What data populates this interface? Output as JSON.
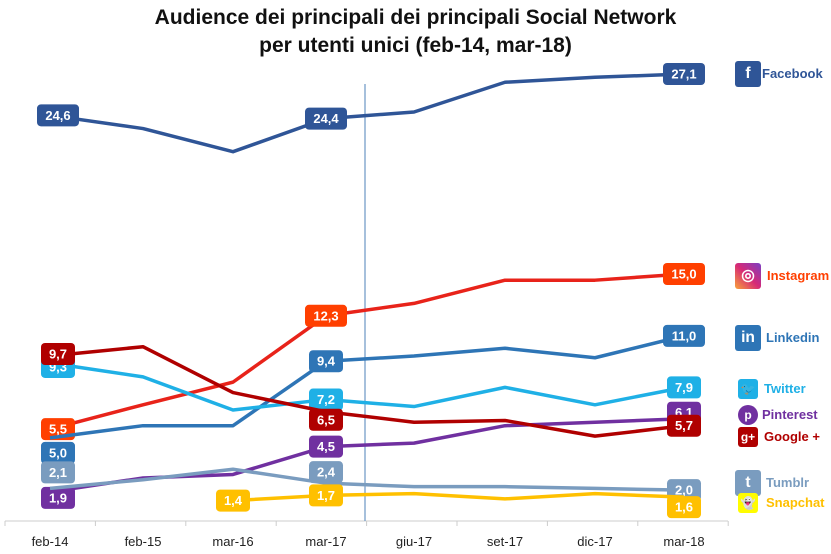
{
  "chart_data": {
    "type": "line",
    "title": "Audience dei principali dei principali Social Network",
    "subtitle": "per utenti unici (feb-14, mar-18)",
    "categories": [
      "feb-14",
      "feb-15",
      "mar-16",
      "mar-17",
      "giu-17",
      "set-17",
      "dic-17",
      "mar-18"
    ],
    "grid": false,
    "legend": "right",
    "series": [
      {
        "name": "Facebook",
        "icon": "facebook-icon",
        "color": "#2f5597",
        "label_color": "#2f5597",
        "values": [
          24.6,
          23.8,
          22.4,
          24.4,
          24.8,
          26.6,
          26.9,
          27.1
        ],
        "labels": [
          {
            "at": "feb-14",
            "text": "24,6"
          },
          {
            "at": "mar-17",
            "text": "24,4"
          },
          {
            "at": "mar-18",
            "text": "27,1"
          }
        ]
      },
      {
        "name": "Instagram",
        "icon": "instagram-icon",
        "color": "#e8231a",
        "label_color": "#ff3f00",
        "values": [
          5.5,
          6.9,
          8.2,
          12.3,
          13.1,
          14.6,
          14.6,
          15.0
        ],
        "labels": [
          {
            "at": "feb-14",
            "text": "5,5"
          },
          {
            "at": "mar-17",
            "text": "12,3"
          },
          {
            "at": "mar-18",
            "text": "15,0"
          }
        ]
      },
      {
        "name": "Linkedin",
        "icon": "linkedin-icon",
        "color": "#2e75b6",
        "label_color": "#2e75b6",
        "values": [
          5.0,
          5.7,
          5.7,
          9.4,
          9.7,
          10.2,
          9.6,
          11.0
        ],
        "labels": [
          {
            "at": "feb-14",
            "text": "5,0"
          },
          {
            "at": "mar-17",
            "text": "9,4"
          },
          {
            "at": "mar-18",
            "text": "11,0"
          }
        ]
      },
      {
        "name": "Twitter",
        "icon": "twitter-icon",
        "color": "#1fb0e6",
        "label_color": "#1fb0e6",
        "values": [
          9.3,
          8.5,
          6.6,
          7.2,
          6.8,
          7.9,
          6.9,
          7.9
        ],
        "labels": [
          {
            "at": "feb-14",
            "text": "9,3"
          },
          {
            "at": "mar-17",
            "text": "7,2"
          },
          {
            "at": "mar-18",
            "text": "7,9"
          }
        ]
      },
      {
        "name": "Pinterest",
        "icon": "pinterest-icon",
        "color": "#7030a0",
        "label_color": "#7030a0",
        "values": [
          1.9,
          2.7,
          2.9,
          4.5,
          4.7,
          5.7,
          5.9,
          6.1
        ],
        "labels": [
          {
            "at": "feb-14",
            "text": "1,9"
          },
          {
            "at": "mar-17",
            "text": "4,5"
          },
          {
            "at": "mar-18",
            "text": "6,1"
          }
        ]
      },
      {
        "name": "Google +",
        "icon": "google-plus-icon",
        "color": "#b00000",
        "label_color": "#b00000",
        "values": [
          9.7,
          10.3,
          7.6,
          6.5,
          5.9,
          6.0,
          5.1,
          5.7
        ],
        "labels": [
          {
            "at": "feb-14",
            "text": "9,7"
          },
          {
            "at": "mar-17",
            "text": "6,5"
          },
          {
            "at": "mar-18",
            "text": "5,7"
          }
        ]
      },
      {
        "name": "Tumblr",
        "icon": "tumblr-icon",
        "color": "#7a9cbf",
        "label_color": "#7a9cbf",
        "values": [
          2.1,
          2.6,
          3.2,
          2.4,
          2.2,
          2.2,
          2.1,
          2.0
        ],
        "labels": [
          {
            "at": "feb-14",
            "text": "2,1"
          },
          {
            "at": "mar-17",
            "text": "2,4"
          },
          {
            "at": "mar-18",
            "text": "2,0"
          }
        ]
      },
      {
        "name": "Snapchat",
        "icon": "snapchat-icon",
        "color": "#ffc000",
        "label_color": "#ffc000",
        "values": [
          null,
          null,
          1.4,
          1.7,
          1.8,
          1.5,
          1.8,
          1.6
        ],
        "labels": [
          {
            "at": "mar-16",
            "text": "1,4"
          },
          {
            "at": "mar-17",
            "text": "1,7"
          },
          {
            "at": "mar-18",
            "text": "1,6"
          }
        ]
      }
    ]
  }
}
